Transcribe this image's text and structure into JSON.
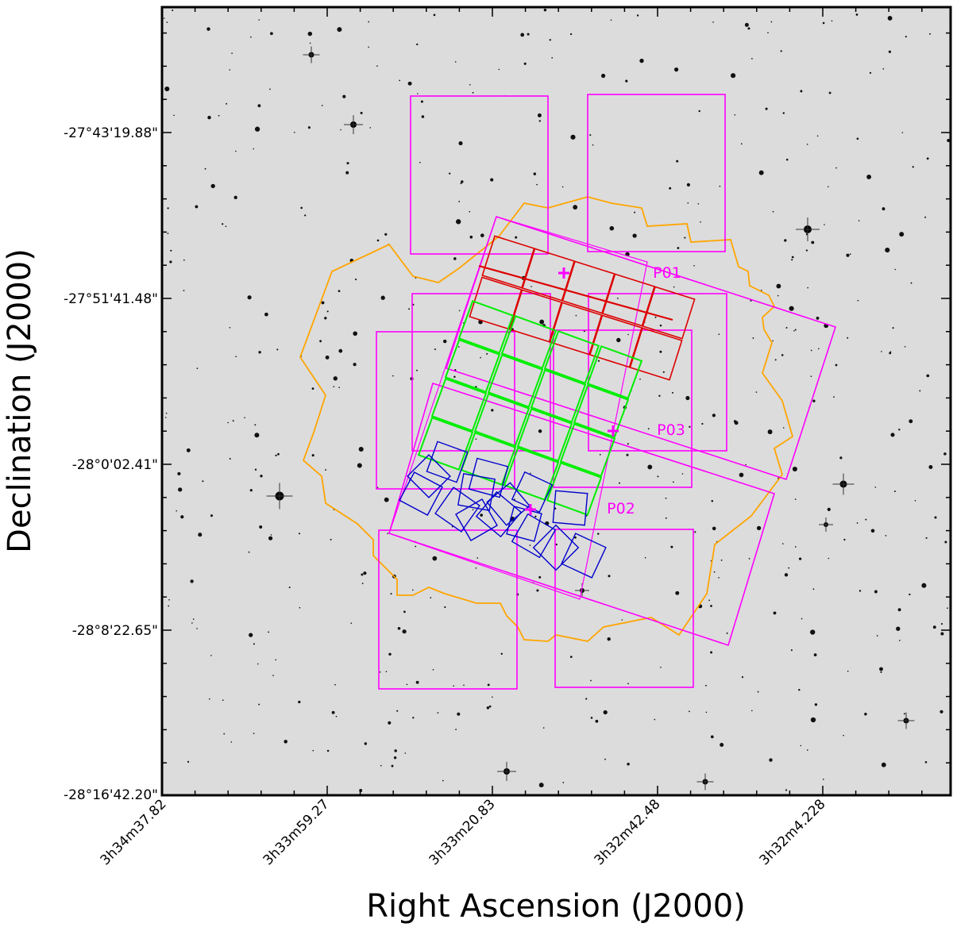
{
  "chart_data": {
    "type": "scatter",
    "title": "",
    "xlabel": "Right Ascension (J2000)",
    "ylabel": "Declination (J2000)",
    "x_tick_labels": [
      "3h34m37.82",
      "3h33m59.27",
      "3h33m20.83",
      "3h32m42.48",
      "3h32m4.228"
    ],
    "y_tick_labels": [
      "-27°43'19.88\"",
      "-27°51'41.48\"",
      "-28°0'02.41\"",
      "-28°8'22.65\"",
      "-28°16'42.20\""
    ],
    "background": "optical sky survey image (greyscale star field)",
    "grid": false,
    "legend": "none",
    "pointings": [
      {
        "name": "P01",
        "color": "#ff00ff"
      },
      {
        "name": "P02",
        "color": "#ff00ff"
      },
      {
        "name": "P03",
        "color": "#ff00ff"
      }
    ],
    "footprint_colors": {
      "magenta": "#ff00ff",
      "orange": "#ffa500",
      "red": "#dd0000",
      "green": "#00ee00",
      "blue": "#0000cc"
    }
  }
}
